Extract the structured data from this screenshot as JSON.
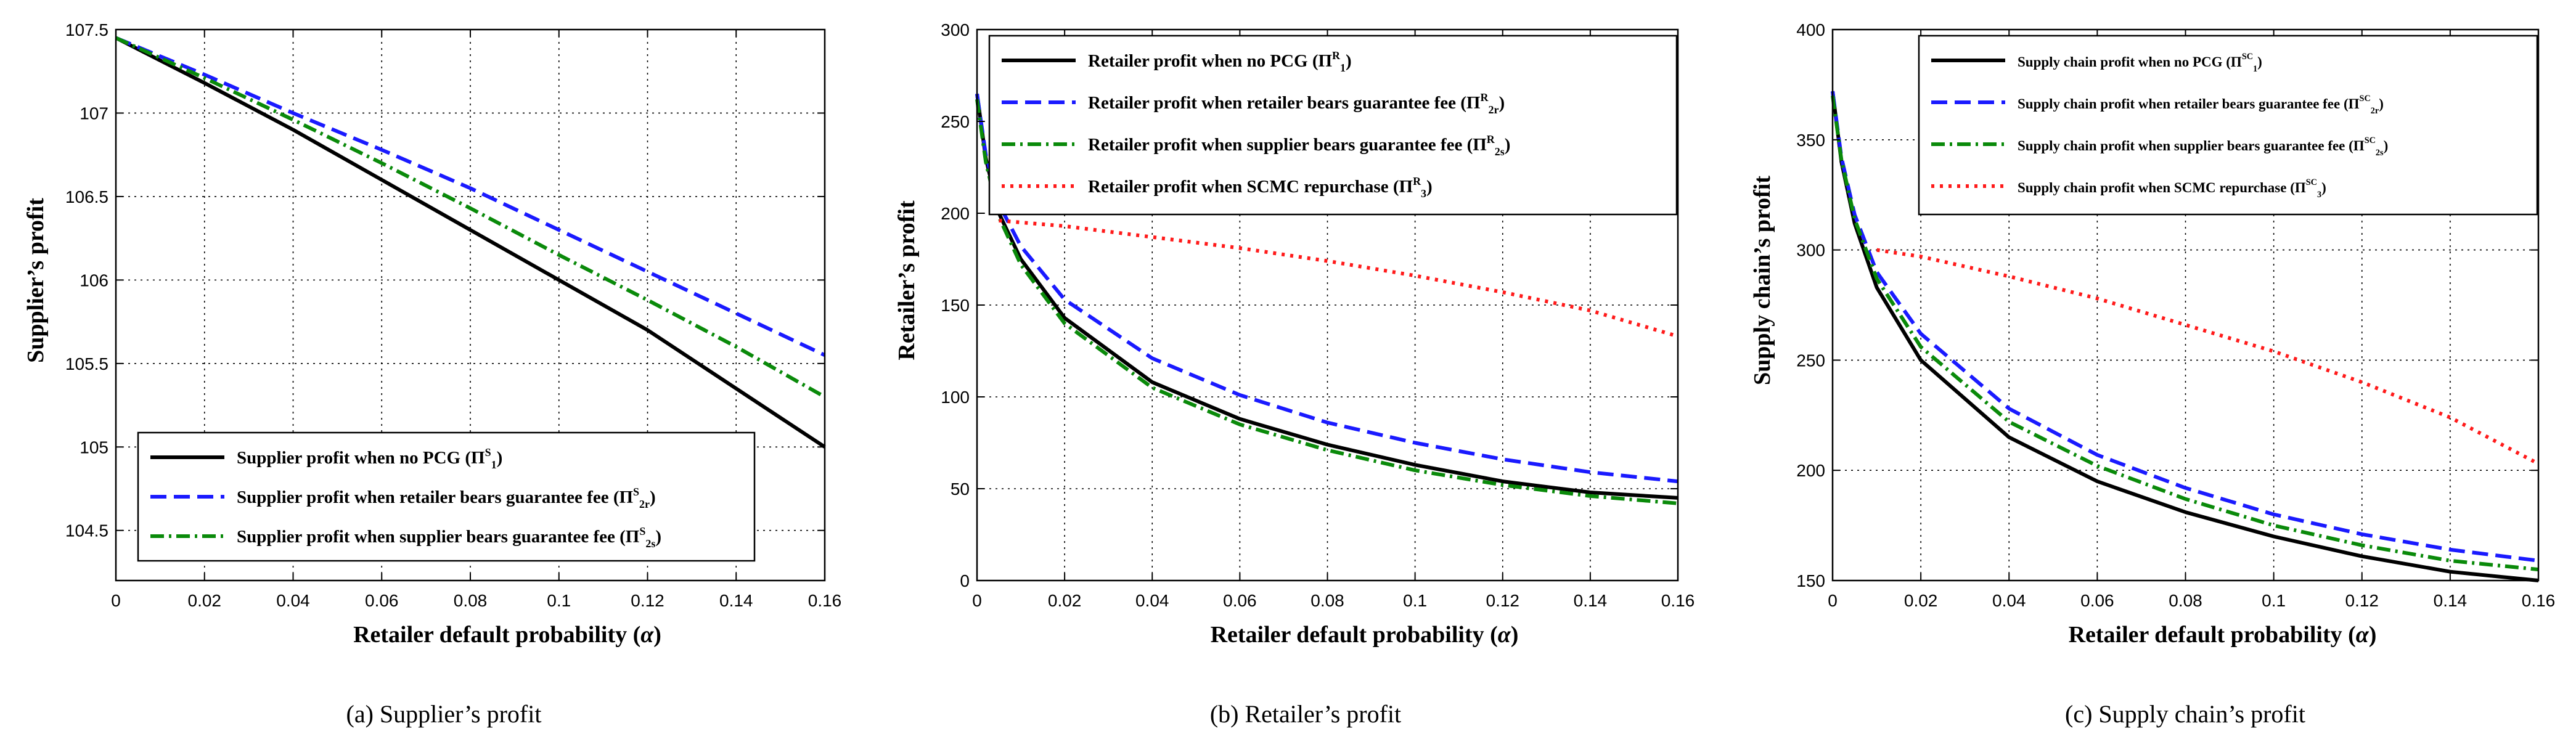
{
  "chart_data": [
    {
      "type": "line",
      "caption": "(a) Supplier’s profit",
      "xlabel": "Retailer default probability (α)",
      "ylabel": "Supplier’s profit",
      "xlim": [
        0,
        0.16
      ],
      "ylim": [
        104.2,
        107.5
      ],
      "xticks": [
        0,
        0.02,
        0.04,
        0.06,
        0.08,
        0.1,
        0.12,
        0.14,
        0.16
      ],
      "xtick_labels": [
        "0",
        "0.02",
        "0.04",
        "0.06",
        "0.08",
        "0.1",
        "0.12",
        "0.14",
        "0.16"
      ],
      "yticks": [
        104.5,
        105,
        105.5,
        106,
        106.5,
        107,
        107.5
      ],
      "ytick_labels": [
        "104.5",
        "105",
        "105.5",
        "106",
        "106.5",
        "107",
        "107.5"
      ],
      "grid": true,
      "legend_position": "bottom-left",
      "series": [
        {
          "name": "Supplier profit when no PCG",
          "sym": "Π",
          "sub": "1",
          "sup": "S",
          "color": "#000000",
          "dash": "",
          "x": [
            0,
            0.02,
            0.04,
            0.06,
            0.08,
            0.1,
            0.12,
            0.14,
            0.16
          ],
          "y": [
            107.45,
            107.18,
            106.9,
            106.6,
            106.3,
            106.0,
            105.7,
            105.35,
            105.0
          ]
        },
        {
          "name": "Supplier profit when retailer bears guarantee fee",
          "sym": "Π",
          "sub": "2r",
          "sup": "S",
          "color": "#1a1aff",
          "dash": "26 12",
          "x": [
            0,
            0.02,
            0.04,
            0.06,
            0.08,
            0.1,
            0.12,
            0.14,
            0.16
          ],
          "y": [
            107.45,
            107.23,
            107.0,
            106.78,
            106.55,
            106.3,
            106.05,
            105.8,
            105.55
          ]
        },
        {
          "name": "Supplier profit when supplier bears guarantee fee",
          "sym": "Π",
          "sub": "2s",
          "sup": "S",
          "color": "#0a8a0a",
          "dash": "22 8 4 8",
          "x": [
            0,
            0.02,
            0.04,
            0.06,
            0.08,
            0.1,
            0.12,
            0.14,
            0.16
          ],
          "y": [
            107.45,
            107.21,
            106.96,
            106.7,
            106.43,
            106.15,
            105.88,
            105.6,
            105.3
          ]
        }
      ]
    },
    {
      "type": "line",
      "caption": "(b) Retailer’s profit",
      "xlabel": "Retailer default probability (α)",
      "ylabel": "Retailer’s profit",
      "xlim": [
        0,
        0.16
      ],
      "ylim": [
        0,
        300
      ],
      "xticks": [
        0,
        0.02,
        0.04,
        0.06,
        0.08,
        0.1,
        0.12,
        0.14,
        0.16
      ],
      "xtick_labels": [
        "0",
        "0.02",
        "0.04",
        "0.06",
        "0.08",
        "0.1",
        "0.12",
        "0.14",
        "0.16"
      ],
      "yticks": [
        0,
        50,
        100,
        150,
        200,
        250,
        300
      ],
      "ytick_labels": [
        "0",
        "50",
        "100",
        "150",
        "200",
        "250",
        "300"
      ],
      "grid": true,
      "legend_position": "top",
      "series": [
        {
          "name": "Retailer profit when no PCG",
          "sym": "Π",
          "sub": "1",
          "sup": "R",
          "color": "#000000",
          "dash": "",
          "x": [
            0,
            0.002,
            0.005,
            0.01,
            0.02,
            0.04,
            0.06,
            0.08,
            0.1,
            0.12,
            0.14,
            0.16
          ],
          "y": [
            265,
            230,
            200,
            175,
            143,
            108,
            88,
            74,
            63,
            54,
            48,
            45
          ]
        },
        {
          "name": "Retailer profit when retailer bears guarantee fee",
          "sym": "Π",
          "sub": "2r",
          "sup": "R",
          "color": "#1a1aff",
          "dash": "26 12",
          "x": [
            0,
            0.002,
            0.005,
            0.01,
            0.02,
            0.04,
            0.06,
            0.08,
            0.1,
            0.12,
            0.14,
            0.16
          ],
          "y": [
            265,
            232,
            205,
            182,
            153,
            121,
            101,
            86,
            75,
            66,
            59,
            54
          ]
        },
        {
          "name": "Retailer profit when supplier bears guarantee fee",
          "sym": "Π",
          "sub": "2s",
          "sup": "R",
          "color": "#0a8a0a",
          "dash": "22 8 4 8",
          "x": [
            0,
            0.002,
            0.005,
            0.01,
            0.02,
            0.04,
            0.06,
            0.08,
            0.1,
            0.12,
            0.14,
            0.16
          ],
          "y": [
            262,
            228,
            198,
            172,
            140,
            105,
            85,
            71,
            60,
            52,
            46,
            42
          ]
        },
        {
          "name": "Retailer profit when SCMC repurchase",
          "sym": "Π",
          "sub": "3",
          "sup": "R",
          "color": "#ff1a1a",
          "dash": "5 9",
          "x": [
            0.005,
            0.02,
            0.04,
            0.06,
            0.08,
            0.1,
            0.12,
            0.14,
            0.16
          ],
          "y": [
            196,
            193,
            187,
            181,
            174,
            166,
            157,
            147,
            133
          ]
        }
      ]
    },
    {
      "type": "line",
      "caption": "(c) Supply chain’s profit",
      "xlabel": "Retailer default probability (α)",
      "ylabel": "Supply chain’s profit",
      "xlim": [
        0,
        0.16
      ],
      "ylim": [
        150,
        400
      ],
      "xticks": [
        0,
        0.02,
        0.04,
        0.06,
        0.08,
        0.1,
        0.12,
        0.14,
        0.16
      ],
      "xtick_labels": [
        "0",
        "0.02",
        "0.04",
        "0.06",
        "0.08",
        "0.1",
        "0.12",
        "0.14",
        "0.16"
      ],
      "yticks": [
        150,
        200,
        250,
        300,
        350,
        400
      ],
      "ytick_labels": [
        "150",
        "200",
        "250",
        "300",
        "350",
        "400"
      ],
      "grid": true,
      "legend_position": "top",
      "series": [
        {
          "name": "Supply chain profit when no PCG",
          "sym": "Π",
          "sub": "1",
          "sup": "SC",
          "color": "#000000",
          "dash": "",
          "x": [
            0,
            0.002,
            0.005,
            0.01,
            0.02,
            0.04,
            0.06,
            0.08,
            0.1,
            0.12,
            0.14,
            0.16
          ],
          "y": [
            372,
            340,
            312,
            283,
            250,
            215,
            195,
            181,
            170,
            161,
            154,
            150
          ]
        },
        {
          "name": "Supply chain profit when retailer bears guarantee fee",
          "sym": "Π",
          "sub": "2r",
          "sup": "SC",
          "color": "#1a1aff",
          "dash": "26 12",
          "x": [
            0,
            0.002,
            0.005,
            0.01,
            0.02,
            0.04,
            0.06,
            0.08,
            0.1,
            0.12,
            0.14,
            0.16
          ],
          "y": [
            372,
            342,
            316,
            290,
            262,
            228,
            207,
            192,
            180,
            171,
            164,
            159
          ]
        },
        {
          "name": "Supply chain profit when supplier bears guarantee fee",
          "sym": "Π",
          "sub": "2s",
          "sup": "SC",
          "color": "#0a8a0a",
          "dash": "22 8 4 8",
          "x": [
            0,
            0.002,
            0.005,
            0.01,
            0.02,
            0.04,
            0.06,
            0.08,
            0.1,
            0.12,
            0.14,
            0.16
          ],
          "y": [
            370,
            341,
            314,
            287,
            256,
            222,
            202,
            187,
            175,
            166,
            159,
            155
          ]
        },
        {
          "name": "Supply chain profit when SCMC repurchase",
          "sym": "Π",
          "sub": "3",
          "sup": "SC",
          "color": "#ff1a1a",
          "dash": "5 9",
          "x": [
            0.01,
            0.02,
            0.04,
            0.06,
            0.08,
            0.1,
            0.12,
            0.14,
            0.16
          ],
          "y": [
            300,
            297,
            288,
            278,
            266,
            254,
            240,
            224,
            203
          ]
        }
      ]
    }
  ]
}
